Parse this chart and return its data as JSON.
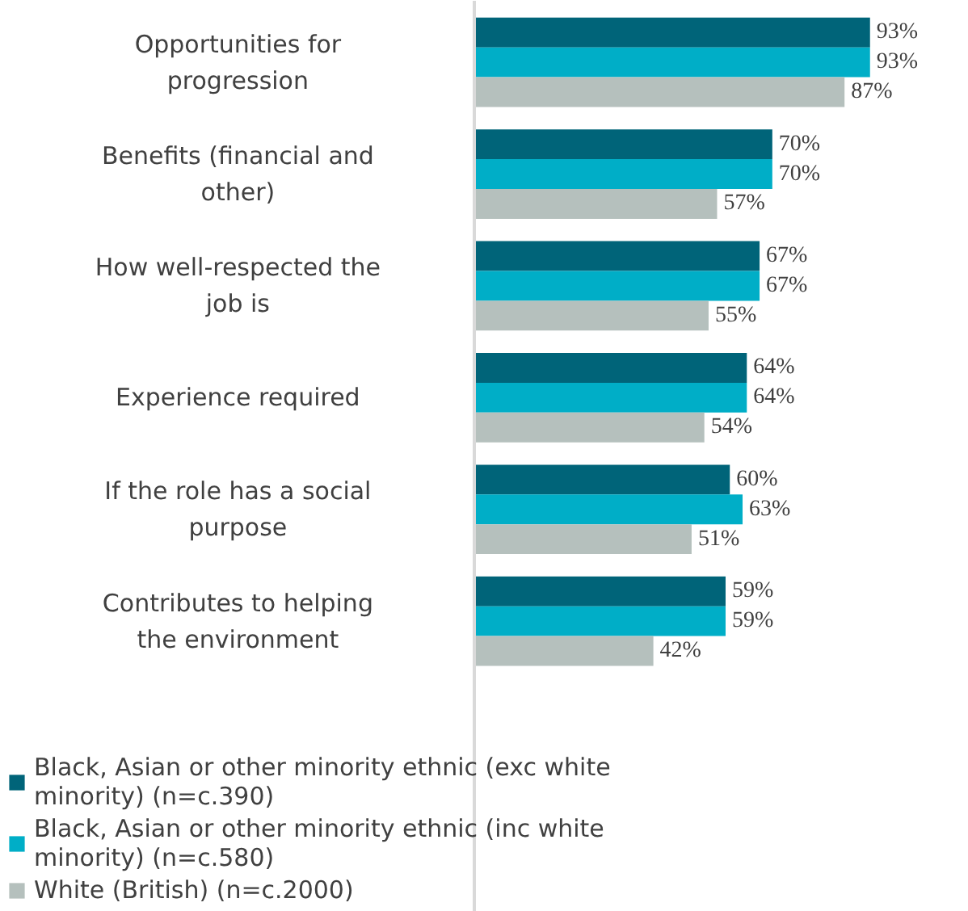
{
  "chart_data": {
    "type": "bar",
    "orientation": "horizontal",
    "categories": [
      "Opportunities for progression",
      "Benefits (financial and other)",
      "How well-respected the job is",
      "Experience required",
      "If the role has a social purpose",
      "Contributes to helping the environment"
    ],
    "series": [
      {
        "name": "Black, Asian or other minority ethnic (exc white minority) (n=c.390)",
        "color": "#006479",
        "values": [
          93,
          70,
          67,
          64,
          60,
          59
        ],
        "value_labels": [
          "93%",
          "70%",
          "67%",
          "64%",
          "60%",
          "59%"
        ]
      },
      {
        "name": "Black, Asian or other minority ethnic (inc white minority) (n=c.580)",
        "color": "#00aec7",
        "values": [
          93,
          70,
          67,
          64,
          63,
          59
        ],
        "value_labels": [
          "93%",
          "70%",
          "67%",
          "64%",
          "63%",
          "59%"
        ]
      },
      {
        "name": "White (British) (n=c.2000)",
        "color": "#b5c0bd",
        "values": [
          87,
          57,
          55,
          54,
          51,
          42
        ],
        "value_labels": [
          "87%",
          "57%",
          "55%",
          "54%",
          "51%",
          "42%"
        ]
      }
    ],
    "legend": "bottom",
    "tick_labels": "y"
  }
}
